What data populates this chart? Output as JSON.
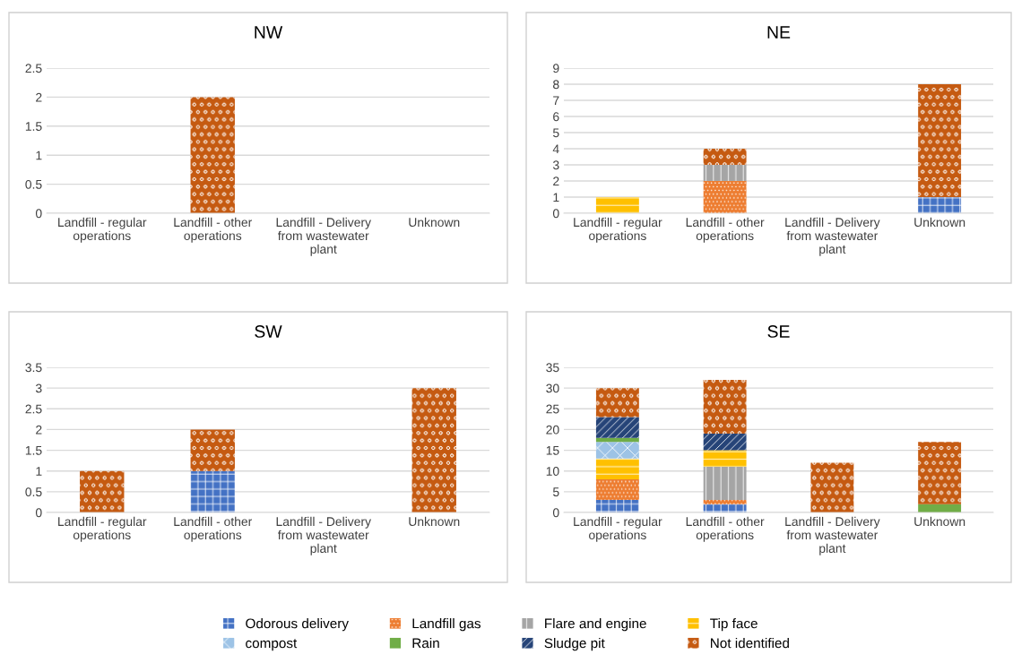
{
  "chart_data": [
    {
      "type": "bar",
      "title": "NW",
      "stacked": true,
      "grid": "y",
      "categories": [
        "Landfill - regular operations",
        "Landfill - other operations",
        "Landfill - Delivery from wastewater plant",
        "Unknown"
      ],
      "ylim": [
        0,
        2.5
      ],
      "yticks": [
        0,
        0.5,
        1,
        1.5,
        2,
        2.5
      ],
      "series": [
        {
          "color": "#4472c4",
          "values": [
            0,
            0,
            0,
            0
          ]
        },
        {
          "color": "#ed7d31",
          "values": [
            0,
            0,
            0,
            0
          ]
        },
        {
          "color": "#a5a5a5",
          "values": [
            0,
            0,
            0,
            0
          ]
        },
        {
          "color": "#ffc000",
          "values": [
            0,
            0,
            0,
            0
          ]
        },
        {
          "color": "#9dc3e6",
          "values": [
            0,
            0,
            0,
            0
          ]
        },
        {
          "color": "#70ad47",
          "values": [
            0,
            0,
            0,
            0
          ]
        },
        {
          "color": "#264478",
          "values": [
            0,
            0,
            0,
            0
          ]
        },
        {
          "color": "#c55a11",
          "values": [
            0,
            2,
            0,
            0
          ]
        }
      ]
    },
    {
      "type": "bar",
      "title": "NE",
      "stacked": true,
      "grid": "y",
      "categories": [
        "Landfill - regular operations",
        "Landfill - other operations",
        "Landfill - Delivery from wastewater plant",
        "Unknown"
      ],
      "ylim": [
        0,
        9
      ],
      "yticks": [
        0,
        1,
        2,
        3,
        4,
        5,
        6,
        7,
        8,
        9
      ],
      "series": [
        {
          "color": "#4472c4",
          "values": [
            0,
            0,
            0,
            1
          ]
        },
        {
          "color": "#ed7d31",
          "values": [
            0,
            2,
            0,
            0
          ]
        },
        {
          "color": "#a5a5a5",
          "values": [
            0,
            1,
            0,
            0
          ]
        },
        {
          "color": "#ffc000",
          "values": [
            1,
            0,
            0,
            0
          ]
        },
        {
          "color": "#9dc3e6",
          "values": [
            0,
            0,
            0,
            0
          ]
        },
        {
          "color": "#70ad47",
          "values": [
            0,
            0,
            0,
            0
          ]
        },
        {
          "color": "#264478",
          "values": [
            0,
            0,
            0,
            0
          ]
        },
        {
          "color": "#c55a11",
          "values": [
            0,
            1,
            0,
            7
          ]
        }
      ]
    },
    {
      "type": "bar",
      "title": "SW",
      "stacked": true,
      "grid": "y",
      "categories": [
        "Landfill - regular operations",
        "Landfill - other operations",
        "Landfill - Delivery from wastewater plant",
        "Unknown"
      ],
      "ylim": [
        0,
        3.5
      ],
      "yticks": [
        0,
        0.5,
        1,
        1.5,
        2,
        2.5,
        3,
        3.5
      ],
      "series": [
        {
          "color": "#4472c4",
          "values": [
            0,
            1,
            0,
            0
          ]
        },
        {
          "color": "#ed7d31",
          "values": [
            0,
            0,
            0,
            0
          ]
        },
        {
          "color": "#a5a5a5",
          "values": [
            0,
            0,
            0,
            0
          ]
        },
        {
          "color": "#ffc000",
          "values": [
            0,
            0,
            0,
            0
          ]
        },
        {
          "color": "#9dc3e6",
          "values": [
            0,
            0,
            0,
            0
          ]
        },
        {
          "color": "#70ad47",
          "values": [
            0,
            0,
            0,
            0
          ]
        },
        {
          "color": "#264478",
          "values": [
            0,
            0,
            0,
            0
          ]
        },
        {
          "color": "#c55a11",
          "values": [
            1,
            1,
            0,
            3
          ]
        }
      ]
    },
    {
      "type": "bar",
      "title": "SE",
      "stacked": true,
      "grid": "y",
      "legend": "bottom",
      "categories": [
        "Landfill - regular operations",
        "Landfill - other operations",
        "Landfill - Delivery from wastewater plant",
        "Unknown"
      ],
      "ylim": [
        0,
        35
      ],
      "yticks": [
        0,
        5,
        10,
        15,
        20,
        25,
        30,
        35
      ],
      "series": [
        {
          "name": "Odorous delivery",
          "color": "#4472c4",
          "values": [
            3,
            2,
            0,
            0
          ]
        },
        {
          "name": "Landfill gas",
          "color": "#ed7d31",
          "values": [
            5,
            1,
            0,
            0
          ]
        },
        {
          "name": "Flare and engine",
          "color": "#a5a5a5",
          "values": [
            0,
            8,
            0,
            0
          ]
        },
        {
          "name": "Tip face",
          "color": "#ffc000",
          "values": [
            5,
            4,
            0,
            0
          ]
        },
        {
          "name": "compost",
          "color": "#9dc3e6",
          "values": [
            4,
            0,
            0,
            0
          ]
        },
        {
          "name": "Rain",
          "color": "#70ad47",
          "values": [
            1,
            0,
            0,
            2
          ]
        },
        {
          "name": "Sludge pit",
          "color": "#264478",
          "values": [
            5,
            4,
            0,
            0
          ]
        },
        {
          "name": "Not identified",
          "color": "#c55a11",
          "values": [
            7,
            13,
            12,
            15
          ]
        }
      ]
    }
  ]
}
